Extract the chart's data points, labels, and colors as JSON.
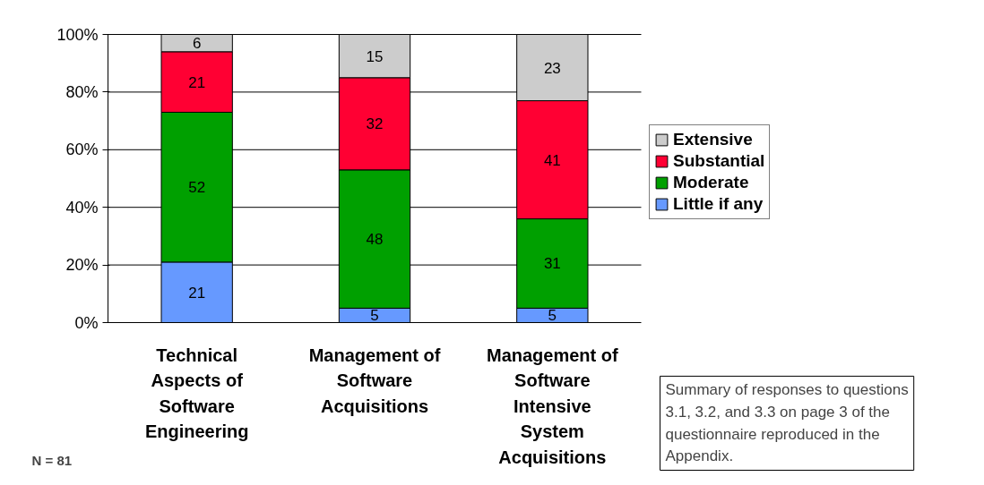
{
  "chart_data": {
    "type": "bar",
    "stacked": true,
    "categories": [
      "Technical Aspects of Software Engineering",
      "Management of Software Acquisitions",
      "Management of Software Intensive System Acquisitions"
    ],
    "series": [
      {
        "name": "Little if any",
        "color": "#6699ff",
        "values": [
          21,
          5,
          5
        ]
      },
      {
        "name": "Moderate",
        "color": "#00a000",
        "values": [
          52,
          48,
          31
        ]
      },
      {
        "name": "Substantial",
        "color": "#ff0033",
        "values": [
          21,
          32,
          41
        ]
      },
      {
        "name": "Extensive",
        "color": "#cccccc",
        "values": [
          6,
          15,
          23
        ]
      }
    ],
    "ylim": [
      0,
      100
    ],
    "yticks": [
      {
        "value": 0,
        "label": "0%"
      },
      {
        "value": 20,
        "label": "20%"
      },
      {
        "value": 40,
        "label": "40%"
      },
      {
        "value": 60,
        "label": "60%"
      },
      {
        "value": 80,
        "label": "80%"
      },
      {
        "value": 100,
        "label": "100%"
      }
    ],
    "grid": "y",
    "legend": "right",
    "data_labels": true,
    "annotations": [
      "N = 81",
      "Summary of responses to questions 3.1, 3.2, and 3.3 on page 3 of the questionnaire reproduced in the Appendix."
    ]
  }
}
